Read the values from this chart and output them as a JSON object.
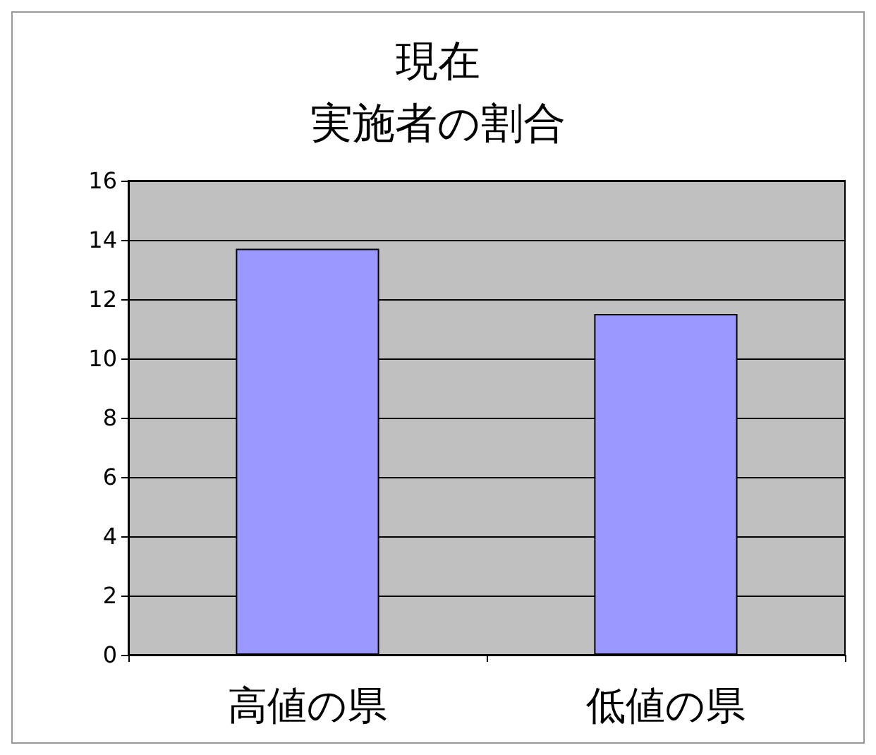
{
  "chart_data": {
    "type": "bar",
    "title": "現在",
    "subtitle": "実施者の割合",
    "categories": [
      "高値の県",
      "低値の県"
    ],
    "values": [
      13.7,
      11.5
    ],
    "color": "#9999ff",
    "ylim": [
      0,
      16
    ],
    "yticks": [
      0,
      2,
      4,
      6,
      8,
      10,
      12,
      14,
      16
    ],
    "grid": "y"
  }
}
